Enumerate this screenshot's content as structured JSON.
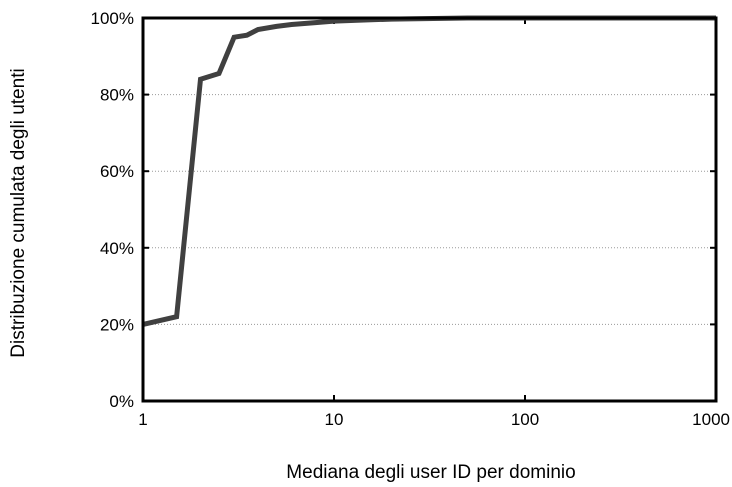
{
  "chart_data": {
    "type": "line",
    "title": "",
    "xlabel": "Mediana degli user ID per dominio",
    "ylabel": "Distribuzione cumulata degli utenti",
    "x_scale": "log",
    "xlim": [
      1,
      1000
    ],
    "ylim": [
      0,
      100
    ],
    "x_ticks": [
      {
        "value": 1,
        "label": "1"
      },
      {
        "value": 10,
        "label": "10"
      },
      {
        "value": 100,
        "label": "100"
      },
      {
        "value": 1000,
        "label": "1000"
      }
    ],
    "y_ticks": [
      {
        "value": 0,
        "label": "0%"
      },
      {
        "value": 20,
        "label": "20%"
      },
      {
        "value": 40,
        "label": "40%"
      },
      {
        "value": 60,
        "label": "60%"
      },
      {
        "value": 80,
        "label": "80%"
      },
      {
        "value": 100,
        "label": "100%"
      }
    ],
    "grid": "horizontal dotted",
    "series": [
      {
        "color": "#404040",
        "x": [
          1,
          1.5,
          2,
          2.5,
          3,
          3.5,
          4,
          5,
          6,
          8,
          10,
          15,
          20,
          30,
          50,
          100,
          1000
        ],
        "y": [
          20,
          22,
          84,
          85.5,
          95,
          95.5,
          97,
          97.8,
          98.3,
          98.8,
          99.2,
          99.5,
          99.7,
          99.85,
          100,
          100,
          100
        ]
      }
    ]
  }
}
